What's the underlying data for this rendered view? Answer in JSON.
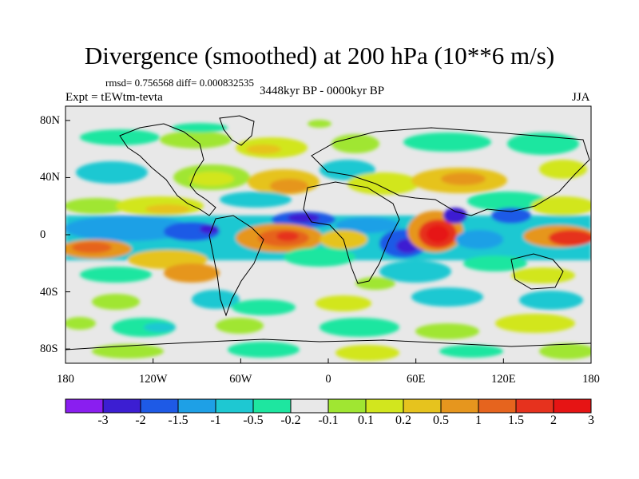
{
  "title": "Divergence (smoothed) at 200 hPa (10**6 m/s)",
  "stats_text": "rmsd= 0.756568 diff= 0.000832535",
  "period_text": "3448kyr BP - 0000kyr BP",
  "experiment_text": "Expt = tEWtm-tevta",
  "season_text": "JJA",
  "map": {
    "lat_ticks": [
      {
        "label": "80N",
        "lat": 80
      },
      {
        "label": "40N",
        "lat": 40
      },
      {
        "label": "0",
        "lat": 0
      },
      {
        "label": "40S",
        "lat": -40
      },
      {
        "label": "80S",
        "lat": -80
      }
    ],
    "lon_ticks": [
      {
        "label": "180",
        "lon": -180
      },
      {
        "label": "120W",
        "lon": -120
      },
      {
        "label": "60W",
        "lon": -60
      },
      {
        "label": "0",
        "lon": 0
      },
      {
        "label": "60E",
        "lon": 60
      },
      {
        "label": "120E",
        "lon": 120
      },
      {
        "label": "180",
        "lon": 180
      }
    ],
    "background_color": "#e8e8e8"
  },
  "colorbar": {
    "colors": [
      "#8a1ef0",
      "#3c1ed2",
      "#1e5ae6",
      "#1ea0e6",
      "#1ec8d2",
      "#1ee6a0",
      "#e8e8e8",
      "#a0e632",
      "#d2e61e",
      "#e6c31e",
      "#e6961e",
      "#e6641e",
      "#e6321e",
      "#e61414"
    ],
    "labels": [
      "-3",
      "-2",
      "-1.5",
      "-1",
      "-0.5",
      "-0.2",
      "-0.1",
      "0.1",
      "0.2",
      "0.5",
      "1",
      "1.5",
      "2",
      "3"
    ]
  }
}
